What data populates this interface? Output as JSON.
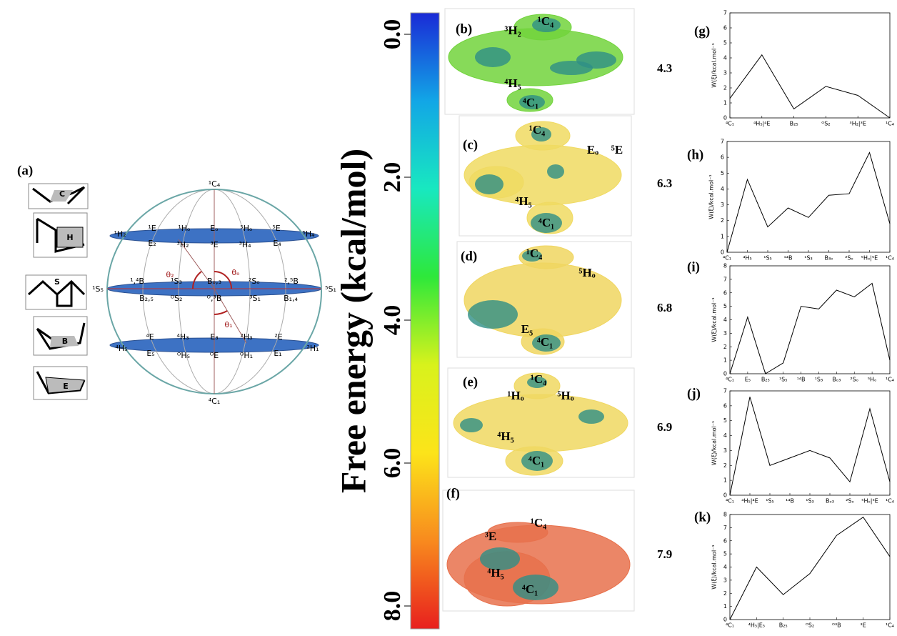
{
  "panel_a": {
    "label": "(a)",
    "conformers": [
      "C",
      "H",
      "S",
      "B",
      "E"
    ],
    "sphere_labels": [
      "¹C₄",
      "⁴C₁",
      "¹H₂",
      "⁵H₄",
      "¹E",
      "¹Hₒ",
      "Eₒ",
      "⁵Hₒ",
      "⁵E",
      "E₂",
      "³H₂",
      "³E",
      "³H₄",
      "E₄",
      "¹S₅",
      "⁵S₁",
      "¹,⁴B",
      "¹S₃",
      "Bₒ,₃",
      "²Sₒ",
      "²,⁵B",
      "B₂,₅",
      "ᴼS₂",
      "ᴼ,³B",
      "³S₁",
      "B₁,₄",
      "θ₂",
      "θₒ",
      "θ₁",
      "⁴E",
      "⁴H₃",
      "E₃",
      "²H₃",
      "²E",
      "⁴H₅",
      "²H₁",
      "E₅",
      "ᴼH₅",
      "ᴼE",
      "ᴼH₁",
      "E₁"
    ]
  },
  "colorbar": {
    "title": "Free energy (kcal/mol)",
    "ticks": [
      {
        "value": 0,
        "label": "0.0"
      },
      {
        "value": 2,
        "label": "2.0"
      },
      {
        "value": 4,
        "label": "4.0"
      },
      {
        "value": 6,
        "label": "6.0"
      },
      {
        "value": 8,
        "label": "8.0"
      }
    ],
    "colors": [
      "#1a2ad6",
      "#12a6e6",
      "#18e8c0",
      "#2ee83a",
      "#d8f21c",
      "#fce41a",
      "#f88a1e",
      "#e8201e"
    ]
  },
  "surfaces": [
    {
      "label": "(b)",
      "sites": [
        "³H₂",
        "¹C₄",
        "⁴H₅",
        "⁴C₁"
      ],
      "energy": 4.3,
      "color": "#72d43c"
    },
    {
      "label": "(c)",
      "sites": [
        "¹C₄",
        "Eₒ",
        "⁵E",
        "⁴H₅",
        "⁴C₁"
      ],
      "energy": 6.3,
      "color": "#f0da62"
    },
    {
      "label": "(d)",
      "sites": [
        "¹C₄",
        "⁵Hₒ",
        "E₅",
        "⁴C₁"
      ],
      "energy": 6.8,
      "color": "#f0d660"
    },
    {
      "label": "(e)",
      "sites": [
        "¹C₄",
        "¹Hₒ",
        "⁵Hₒ",
        "⁴H₅",
        "⁴C₁"
      ],
      "energy": 6.9,
      "color": "#f0d862"
    },
    {
      "label": "(f)",
      "sites": [
        "¹C₄",
        "³E",
        "⁴H₅",
        "⁴C₁"
      ],
      "energy": 7.9,
      "color": "#e8714c"
    }
  ],
  "chart_data": [
    {
      "type": "line",
      "label": "(g)",
      "ylabel": "W(ξ)/kcal.mol⁻¹",
      "color": "#000000",
      "categories": [
        "⁴C₁",
        "⁴H₅|⁴E",
        "B₂₅",
        "ᴼS₂",
        "³H₂|³E",
        "¹C₄"
      ],
      "values": [
        1.3,
        4.2,
        0.6,
        2.1,
        1.5,
        0
      ],
      "ylim": [
        0,
        7
      ],
      "yticks": [
        0,
        1,
        2,
        3,
        4,
        5,
        6,
        7
      ]
    },
    {
      "type": "line",
      "label": "(h)",
      "ylabel": "W(ξ)/kcal.mol⁻¹",
      "color": "#000000",
      "categories": [
        "⁴C₁",
        "⁴H₅",
        "¹S₅",
        "¹⁴B",
        "¹S₃",
        "B₃ₒ",
        "²Sₒ",
        "⁵Hₒ|⁵E",
        "¹C₄"
      ],
      "values": [
        0,
        4.6,
        1.6,
        2.8,
        2.2,
        3.6,
        3.7,
        6.3,
        1.8
      ],
      "ylim": [
        0,
        7
      ],
      "yticks": [
        0,
        1,
        2,
        3,
        4,
        5,
        6,
        7
      ]
    },
    {
      "type": "line",
      "label": "(i)",
      "ylabel": "W(ξ)/kcal.mol⁻¹",
      "color": "#000000",
      "categories": [
        "⁴C₁",
        "E₅",
        "B₂₅",
        "¹S₅",
        "¹⁴B",
        "¹S₃",
        "Bₒ₃",
        "²Sₒ",
        "⁵Hₒ",
        "¹C₄"
      ],
      "values": [
        0,
        4.2,
        0,
        0.8,
        5.0,
        4.8,
        6.2,
        5.7,
        6.7,
        1.0
      ],
      "ylim": [
        0,
        8
      ],
      "yticks": [
        0,
        1,
        2,
        3,
        4,
        5,
        6,
        7,
        8
      ]
    },
    {
      "type": "line",
      "label": "(j)",
      "ylabel": "W(ξ)/kcal.mol⁻¹",
      "color": "#000000",
      "categories": [
        "⁴C₁",
        "⁴H₅|⁴E",
        "¹S₅",
        "¹⁴B",
        "¹S₃",
        "Bₒ₃",
        "²Sₒ",
        "⁵Hₒ|⁵E",
        "¹C₄"
      ],
      "values": [
        0,
        6.6,
        2.0,
        2.5,
        3.0,
        2.5,
        0.9,
        5.8,
        0.9
      ],
      "ylim": [
        0,
        7
      ],
      "yticks": [
        0,
        1,
        2,
        3,
        4,
        5,
        6,
        7
      ]
    },
    {
      "type": "line",
      "label": "(k)",
      "ylabel": "W(ξ)/kcal.mol⁻¹",
      "color": "#000000",
      "categories": [
        "⁴C₁",
        "⁴H₅|E₅",
        "B₂₅",
        "ᴼS₂",
        "ᴼ³B",
        "³E",
        "¹C₄"
      ],
      "values": [
        0,
        4.0,
        1.9,
        3.5,
        6.4,
        7.8,
        4.8
      ],
      "ylim": [
        0,
        8
      ],
      "yticks": [
        0,
        1,
        2,
        3,
        4,
        5,
        6,
        7,
        8
      ]
    }
  ]
}
